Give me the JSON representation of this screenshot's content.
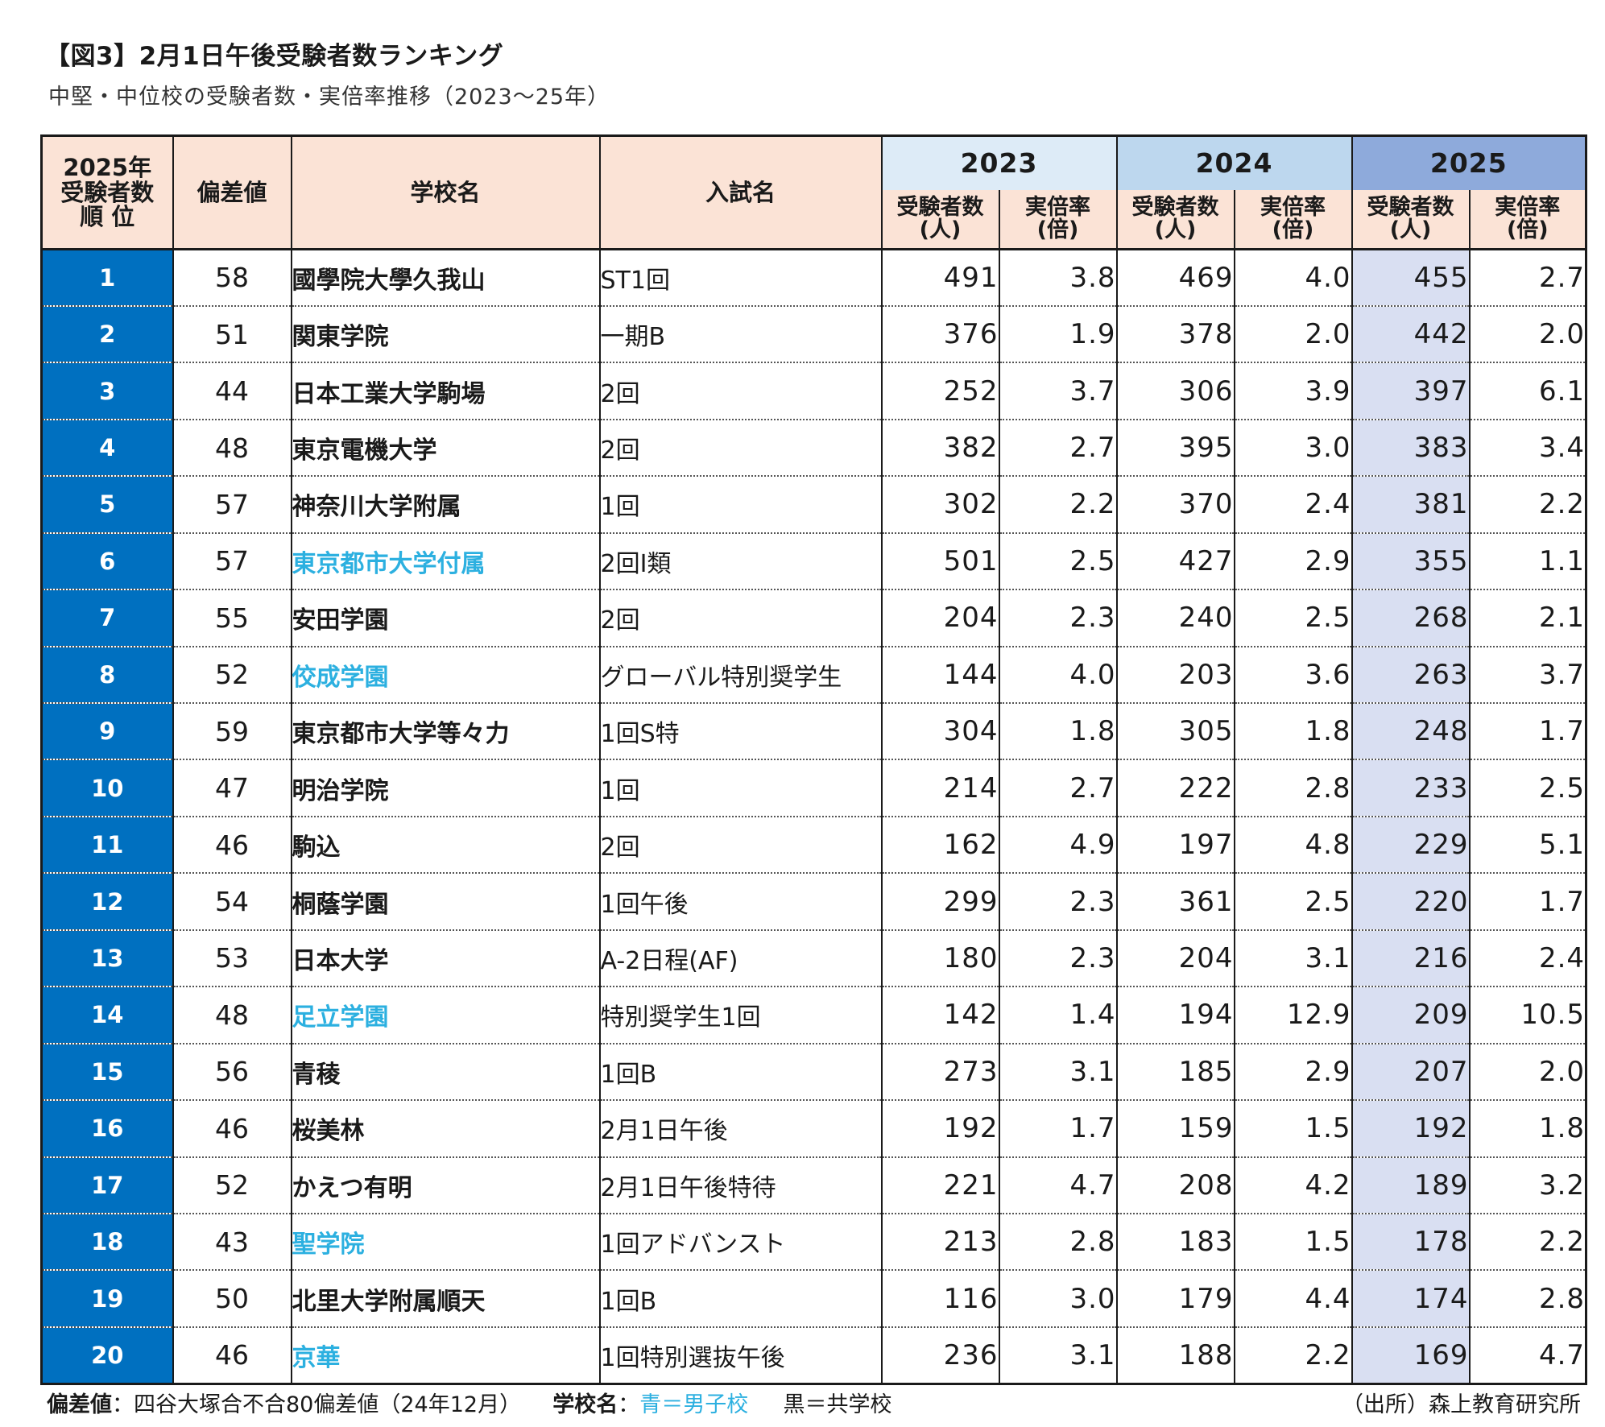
{
  "title": "【図3】2月1日午後受験者数ランキング",
  "subtitle": "中堅・中位校の受験者数・実倍率推移（2023〜25年）",
  "headers": {
    "rank": "2025年 受験者数 順 位",
    "deviation": "偏差値",
    "school": "学校名",
    "exam": "入試名",
    "year_2023": "2023",
    "year_2024": "2024",
    "year_2025": "2025",
    "applicants": "受験者数 (人)",
    "ratio": "実倍率 (倍)"
  },
  "rows": [
    {
      "rank": "1",
      "deviation": "58",
      "school": "國學院大學久我山",
      "exam": "ST1回",
      "a2023": "491",
      "r2023": "3.8",
      "a2024": "469",
      "r2024": "4.0",
      "a2025": "455",
      "r2025": "2.7"
    },
    {
      "rank": "2",
      "deviation": "51",
      "school": "関東学院",
      "exam": "一期B",
      "a2023": "376",
      "r2023": "1.9",
      "a2024": "378",
      "r2024": "2.0",
      "a2025": "442",
      "r2025": "2.0"
    },
    {
      "rank": "3",
      "deviation": "44",
      "school": "日本工業大学駒場",
      "exam": "2回",
      "a2023": "252",
      "r2023": "3.7",
      "a2024": "306",
      "r2024": "3.9",
      "a2025": "397",
      "r2025": "6.1"
    },
    {
      "rank": "4",
      "deviation": "48",
      "school": "東京電機大学",
      "exam": "2回",
      "a2023": "382",
      "r2023": "2.7",
      "a2024": "395",
      "r2024": "3.0",
      "a2025": "383",
      "r2025": "3.4"
    },
    {
      "rank": "5",
      "deviation": "57",
      "school": "神奈川大学附属",
      "exam": "1回",
      "a2023": "302",
      "r2023": "2.2",
      "a2024": "370",
      "r2024": "2.4",
      "a2025": "381",
      "r2025": "2.2"
    },
    {
      "rank": "6",
      "deviation": "57",
      "school": "東京都市大学付属",
      "boys": true,
      "exam": "2回Ⅰ類",
      "a2023": "501",
      "r2023": "2.5",
      "a2024": "427",
      "r2024": "2.9",
      "a2025": "355",
      "r2025": "1.1"
    },
    {
      "rank": "7",
      "deviation": "55",
      "school": "安田学園",
      "exam": "2回",
      "a2023": "204",
      "r2023": "2.3",
      "a2024": "240",
      "r2024": "2.5",
      "a2025": "268",
      "r2025": "2.1"
    },
    {
      "rank": "8",
      "deviation": "52",
      "school": "佼成学園",
      "boys": true,
      "exam": "グローバル特別奨学生",
      "a2023": "144",
      "r2023": "4.0",
      "a2024": "203",
      "r2024": "3.6",
      "a2025": "263",
      "r2025": "3.7"
    },
    {
      "rank": "9",
      "deviation": "59",
      "school": "東京都市大学等々力",
      "exam": "1回S特",
      "a2023": "304",
      "r2023": "1.8",
      "a2024": "305",
      "r2024": "1.8",
      "a2025": "248",
      "r2025": "1.7"
    },
    {
      "rank": "10",
      "deviation": "47",
      "school": "明治学院",
      "exam": "1回",
      "a2023": "214",
      "r2023": "2.7",
      "a2024": "222",
      "r2024": "2.8",
      "a2025": "233",
      "r2025": "2.5"
    },
    {
      "rank": "11",
      "deviation": "46",
      "school": "駒込",
      "exam": "2回",
      "a2023": "162",
      "r2023": "4.9",
      "a2024": "197",
      "r2024": "4.8",
      "a2025": "229",
      "r2025": "5.1"
    },
    {
      "rank": "12",
      "deviation": "54",
      "school": "桐蔭学園",
      "exam": "1回午後",
      "a2023": "299",
      "r2023": "2.3",
      "a2024": "361",
      "r2024": "2.5",
      "a2025": "220",
      "r2025": "1.7"
    },
    {
      "rank": "13",
      "deviation": "53",
      "school": "日本大学",
      "exam": "A-2日程(AF)",
      "a2023": "180",
      "r2023": "2.3",
      "a2024": "204",
      "r2024": "3.1",
      "a2025": "216",
      "r2025": "2.4"
    },
    {
      "rank": "14",
      "deviation": "48",
      "school": "足立学園",
      "boys": true,
      "exam": "特別奨学生1回",
      "a2023": "142",
      "r2023": "1.4",
      "a2024": "194",
      "r2024": "12.9",
      "a2025": "209",
      "r2025": "10.5"
    },
    {
      "rank": "15",
      "deviation": "56",
      "school": "青稜",
      "exam": "1回B",
      "a2023": "273",
      "r2023": "3.1",
      "a2024": "185",
      "r2024": "2.9",
      "a2025": "207",
      "r2025": "2.0"
    },
    {
      "rank": "16",
      "deviation": "46",
      "school": "桜美林",
      "exam": "2月1日午後",
      "a2023": "192",
      "r2023": "1.7",
      "a2024": "159",
      "r2024": "1.5",
      "a2025": "192",
      "r2025": "1.8"
    },
    {
      "rank": "17",
      "deviation": "52",
      "school": "かえつ有明",
      "exam": "2月1日午後特待",
      "a2023": "221",
      "r2023": "4.7",
      "a2024": "208",
      "r2024": "4.2",
      "a2025": "189",
      "r2025": "3.2"
    },
    {
      "rank": "18",
      "deviation": "43",
      "school": "聖学院",
      "boys": true,
      "exam": "1回アドバンスト",
      "a2023": "213",
      "r2023": "2.8",
      "a2024": "183",
      "r2024": "1.5",
      "a2025": "178",
      "r2025": "2.2"
    },
    {
      "rank": "19",
      "deviation": "50",
      "school": "北里大学附属順天",
      "exam": "1回B",
      "a2023": "116",
      "r2023": "3.0",
      "a2024": "179",
      "r2024": "4.4",
      "a2025": "174",
      "r2025": "2.8"
    },
    {
      "rank": "20",
      "deviation": "46",
      "school": "京華",
      "boys": true,
      "exam": "1回特別選抜午後",
      "a2023": "236",
      "r2023": "3.1",
      "a2024": "188",
      "r2024": "2.2",
      "a2025": "169",
      "r2025": "4.7"
    }
  ],
  "footer": {
    "deviation_label": "偏差値",
    "deviation_text": "：四谷大塚合不合80偏差値（24年12月）",
    "school_label": "学校名",
    "school_colon": "：",
    "boys_text": "青＝男子校",
    "coed_text": "黒＝共学校",
    "source": "（出所）森上教育研究所"
  },
  "colors": {
    "rank_column": "#0070c0",
    "header_bg": "#fbe3d6",
    "year_2023_bg": "#ddebf7",
    "year_2024_bg": "#bdd7ee",
    "year_2025_bg": "#8eaadb",
    "highlight_2025_applicants": "#d9dff2",
    "boys_school_text": "#2cb0e0"
  }
}
